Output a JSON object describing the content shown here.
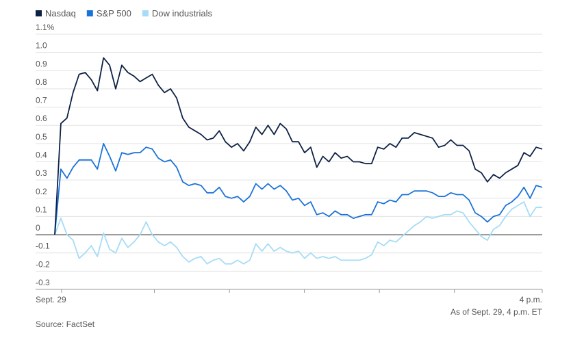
{
  "chart_data": {
    "type": "line",
    "legend_position": "top-left",
    "grid": true,
    "ylim": [
      -0.3,
      1.1
    ],
    "yticks": [
      "1.1%",
      "1.0",
      "0.9",
      "0.8",
      "0.7",
      "0.6",
      "0.5",
      "0.4",
      "0.3",
      "0.2",
      "0.1",
      "0",
      "-0.1",
      "-0.2",
      "-0.3"
    ],
    "ytick_values": [
      1.1,
      1.0,
      0.9,
      0.8,
      0.7,
      0.6,
      0.5,
      0.4,
      0.3,
      0.2,
      0.1,
      0,
      -0.1,
      -0.2,
      -0.3
    ],
    "xticks": [
      {
        "label": "Sept. 29",
        "at": 0
      },
      {
        "label": "",
        "at": 1
      },
      {
        "label": "",
        "at": 2
      },
      {
        "label": "",
        "at": 3
      },
      {
        "label": "",
        "at": 4
      },
      {
        "label": "",
        "at": 5
      },
      {
        "label": "4 p.m.",
        "at": 6.5
      }
    ],
    "x_range": [
      0,
      6.5
    ],
    "series": [
      {
        "name": "Nasdaq",
        "color": "#0d2145",
        "values": [
          0,
          0.61,
          0.64,
          0.78,
          0.88,
          0.89,
          0.85,
          0.79,
          0.97,
          0.93,
          0.8,
          0.93,
          0.89,
          0.87,
          0.84,
          0.86,
          0.88,
          0.82,
          0.78,
          0.8,
          0.75,
          0.64,
          0.59,
          0.57,
          0.55,
          0.52,
          0.53,
          0.57,
          0.51,
          0.48,
          0.5,
          0.46,
          0.51,
          0.59,
          0.55,
          0.6,
          0.55,
          0.61,
          0.58,
          0.51,
          0.51,
          0.45,
          0.48,
          0.37,
          0.43,
          0.4,
          0.45,
          0.42,
          0.43,
          0.4,
          0.4,
          0.39,
          0.39,
          0.48,
          0.47,
          0.5,
          0.48,
          0.53,
          0.53,
          0.56,
          0.55,
          0.54,
          0.53,
          0.48,
          0.49,
          0.52,
          0.49,
          0.49,
          0.46,
          0.36,
          0.34,
          0.29,
          0.33,
          0.31,
          0.34,
          0.36,
          0.38,
          0.45,
          0.43,
          0.48,
          0.47
        ]
      },
      {
        "name": "S&P 500",
        "color": "#1a73d9",
        "values": [
          0,
          0.36,
          0.31,
          0.37,
          0.41,
          0.41,
          0.41,
          0.36,
          0.5,
          0.43,
          0.35,
          0.45,
          0.44,
          0.45,
          0.45,
          0.48,
          0.47,
          0.42,
          0.4,
          0.41,
          0.37,
          0.29,
          0.27,
          0.28,
          0.27,
          0.23,
          0.23,
          0.26,
          0.21,
          0.2,
          0.21,
          0.18,
          0.21,
          0.28,
          0.25,
          0.28,
          0.25,
          0.27,
          0.24,
          0.19,
          0.2,
          0.16,
          0.18,
          0.11,
          0.12,
          0.1,
          0.13,
          0.11,
          0.11,
          0.09,
          0.1,
          0.11,
          0.11,
          0.18,
          0.17,
          0.19,
          0.18,
          0.22,
          0.22,
          0.24,
          0.24,
          0.24,
          0.23,
          0.21,
          0.21,
          0.23,
          0.22,
          0.22,
          0.19,
          0.12,
          0.1,
          0.07,
          0.1,
          0.11,
          0.16,
          0.18,
          0.21,
          0.26,
          0.2,
          0.27,
          0.26
        ]
      },
      {
        "name": "Dow industrials",
        "color": "#a6dcf5",
        "values": [
          0,
          0.09,
          0.0,
          -0.03,
          -0.13,
          -0.1,
          -0.06,
          -0.12,
          0.01,
          -0.08,
          -0.1,
          -0.02,
          -0.07,
          -0.04,
          0.0,
          0.07,
          0.0,
          -0.04,
          -0.06,
          -0.04,
          -0.07,
          -0.12,
          -0.15,
          -0.13,
          -0.12,
          -0.16,
          -0.14,
          -0.13,
          -0.16,
          -0.16,
          -0.14,
          -0.16,
          -0.14,
          -0.05,
          -0.09,
          -0.05,
          -0.09,
          -0.07,
          -0.09,
          -0.1,
          -0.09,
          -0.13,
          -0.1,
          -0.13,
          -0.12,
          -0.13,
          -0.12,
          -0.14,
          -0.14,
          -0.14,
          -0.14,
          -0.13,
          -0.11,
          -0.04,
          -0.06,
          -0.03,
          -0.04,
          -0.01,
          0.02,
          0.05,
          0.07,
          0.1,
          0.09,
          0.1,
          0.11,
          0.11,
          0.13,
          0.12,
          0.07,
          0.03,
          -0.01,
          -0.03,
          0.03,
          0.05,
          0.1,
          0.14,
          0.16,
          0.18,
          0.1,
          0.15,
          0.15
        ]
      }
    ]
  },
  "notes": {
    "as_of": "As of Sept. 29, 4 p.m. ET",
    "source": "Source: FactSet"
  }
}
